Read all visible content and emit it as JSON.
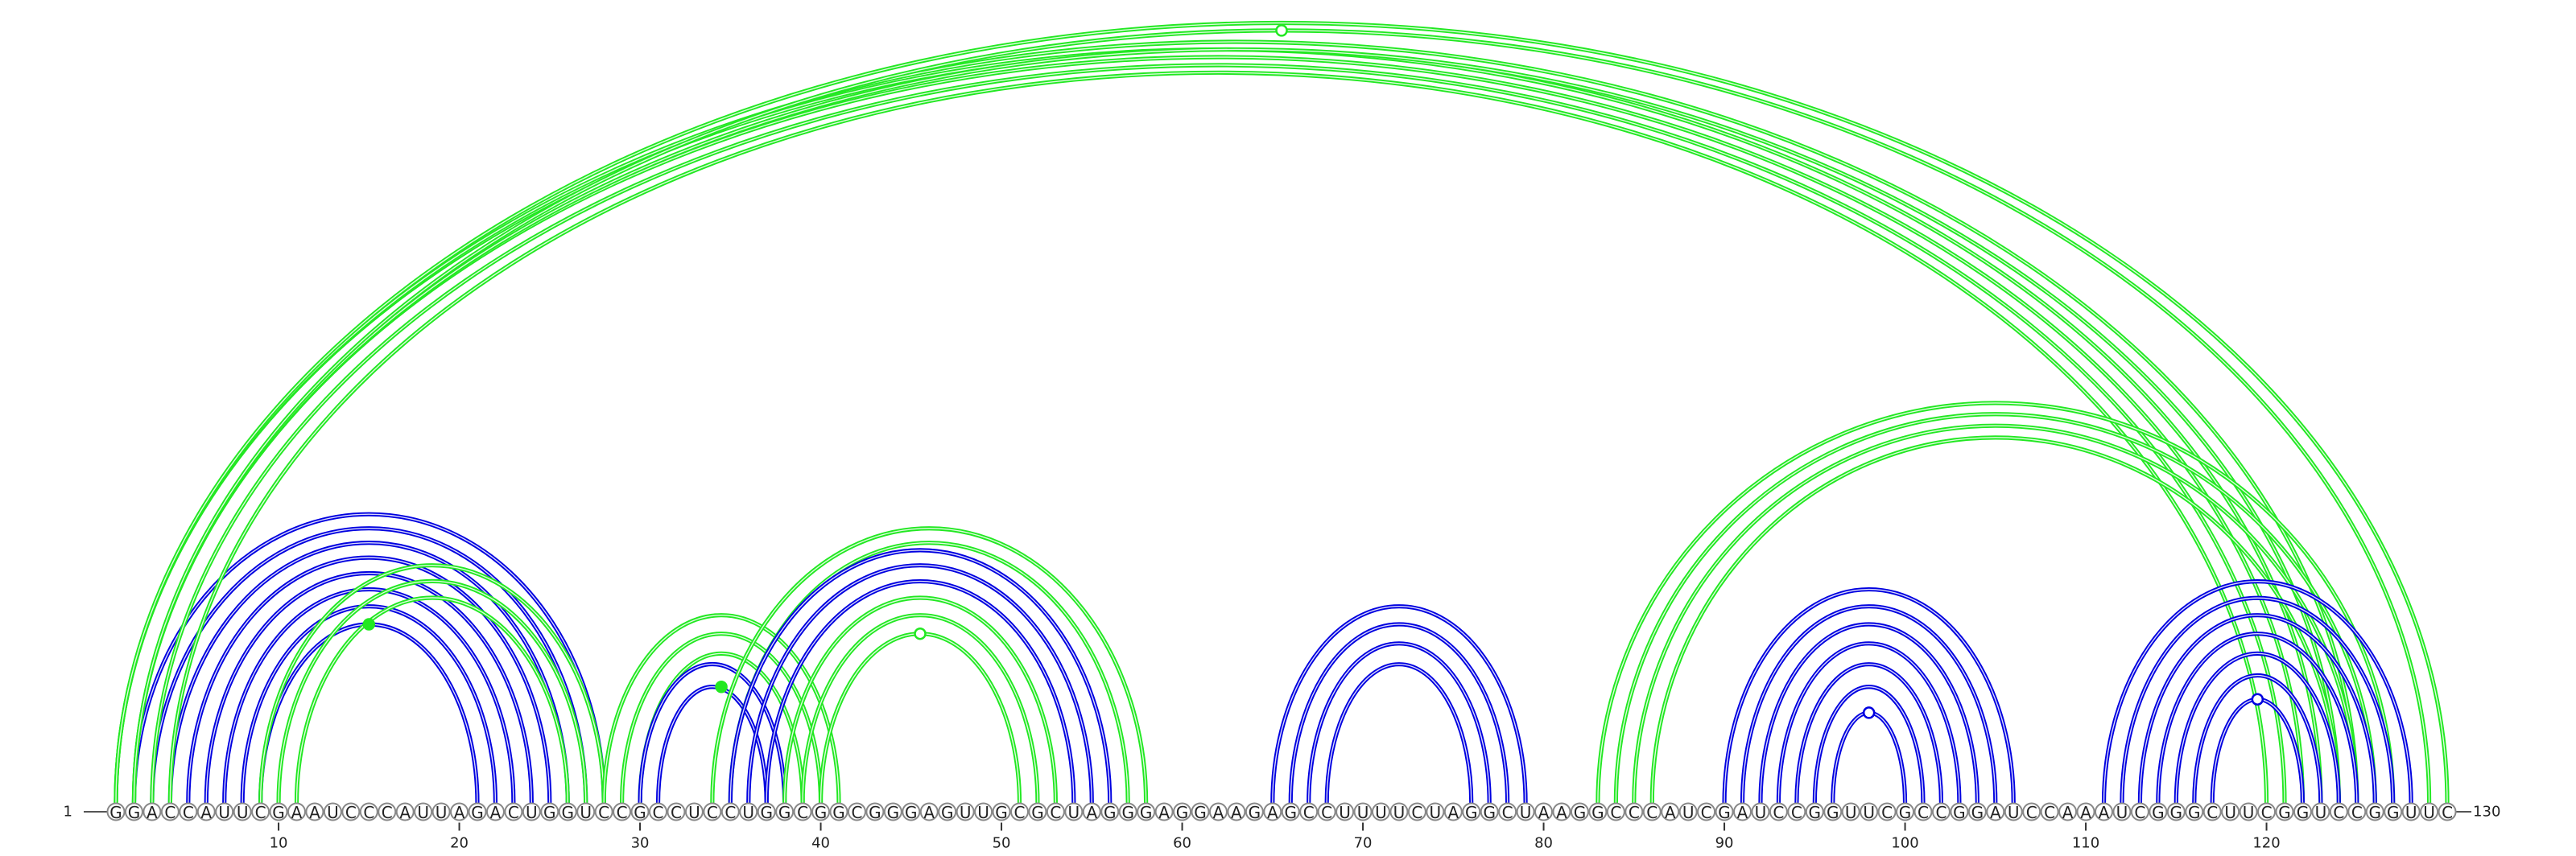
{
  "diagram": {
    "type": "rna-arc-diagram",
    "sequence": "GGACCAUUCGAAUCCCAUUAGACUGGUCCGCCUCCUGGCGGCGGGAGUUGCGCUAGGGAGGAAGAGCCUUUUCUAGGCUAAGGCCCAUCGAUCCGGUUCGCCGGAUCCAAAUCGGGCUUCGGUCCGGUUC",
    "start_label": "1",
    "end_label": "130",
    "ticks": [
      10,
      20,
      30,
      40,
      50,
      60,
      70,
      80,
      90,
      100,
      110,
      120
    ],
    "colors": {
      "blue": "#0000e0",
      "green": "#22e822"
    },
    "helices": [
      {
        "color": "blue",
        "pairs": [
          [
            2,
            28
          ],
          [
            3,
            27
          ],
          [
            4,
            26
          ],
          [
            5,
            25
          ],
          [
            6,
            24
          ],
          [
            7,
            23
          ],
          [
            8,
            22
          ]
        ]
      },
      {
        "color": "blue",
        "pairs": [
          [
            9,
            21
          ]
        ]
      },
      {
        "color": "green",
        "pairs": [
          [
            9,
            28
          ],
          [
            10,
            27
          ],
          [
            11,
            26
          ]
        ]
      },
      {
        "color": "green",
        "pairs": [
          [
            1,
            123
          ],
          [
            2,
            122
          ],
          [
            3,
            121
          ],
          [
            4,
            120
          ]
        ]
      },
      {
        "color": "green",
        "pairs": [
          [
            1,
            125
          ],
          [
            2,
            124
          ]
        ]
      },
      {
        "color": "green",
        "pairs": [
          [
            1,
            130
          ],
          [
            2,
            129
          ]
        ]
      },
      {
        "color": "green",
        "pairs": [
          [
            28,
            41
          ],
          [
            29,
            40
          ],
          [
            30,
            39
          ]
        ]
      },
      {
        "color": "blue",
        "pairs": [
          [
            30,
            38
          ],
          [
            31,
            37
          ]
        ]
      },
      {
        "color": "green",
        "pairs": [
          [
            34,
            58
          ],
          [
            35,
            57
          ]
        ]
      },
      {
        "color": "blue",
        "pairs": [
          [
            35,
            56
          ],
          [
            36,
            55
          ],
          [
            37,
            54
          ]
        ]
      },
      {
        "color": "green",
        "pairs": [
          [
            38,
            53
          ],
          [
            39,
            52
          ],
          [
            40,
            51
          ]
        ]
      },
      {
        "color": "blue",
        "pairs": [
          [
            65,
            79
          ],
          [
            66,
            78
          ],
          [
            67,
            77
          ],
          [
            68,
            76
          ]
        ]
      },
      {
        "color": "green",
        "pairs": [
          [
            83,
            127
          ],
          [
            84,
            126
          ],
          [
            85,
            125
          ],
          [
            86,
            124
          ]
        ]
      },
      {
        "color": "blue",
        "pairs": [
          [
            90,
            106
          ],
          [
            91,
            105
          ],
          [
            92,
            104
          ],
          [
            93,
            103
          ],
          [
            94,
            102
          ],
          [
            95,
            101
          ],
          [
            96,
            100
          ]
        ]
      },
      {
        "color": "blue",
        "pairs": [
          [
            111,
            128
          ],
          [
            112,
            127
          ],
          [
            113,
            126
          ],
          [
            114,
            125
          ],
          [
            115,
            124
          ],
          [
            116,
            123
          ],
          [
            117,
            122
          ]
        ]
      }
    ],
    "loop_markers": [
      {
        "color": "green",
        "filled": false,
        "pos": 65.5
      },
      {
        "color": "green",
        "filled": true,
        "pos": 15
      },
      {
        "color": "green",
        "filled": true,
        "pos": 34.5
      },
      {
        "color": "green",
        "filled": false,
        "pos": 45.5
      },
      {
        "color": "blue",
        "filled": false,
        "pos": 98
      },
      {
        "color": "blue",
        "filled": false,
        "pos": 119.5
      }
    ]
  }
}
